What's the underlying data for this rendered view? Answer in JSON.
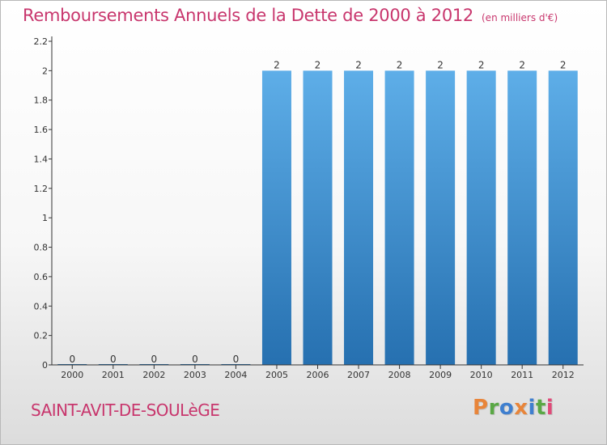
{
  "header": {
    "title": "Remboursements Annuels de la Dette de 2000 à 2012",
    "subtitle": "(en milliers d'€)"
  },
  "footer": {
    "commune": "SAINT-AVIT-DE-SOULèGE",
    "logo_text": "Proxiti",
    "logo_colors": [
      "#e8853a",
      "#5aa845",
      "#3f7fcf",
      "#e8853a",
      "#3f7fcf",
      "#5aa845",
      "#e04a79"
    ]
  },
  "colors": {
    "bar_top": "#5eaee8",
    "bar_bottom": "#2670b0",
    "text_accent": "#c8366d",
    "axis": "#333333"
  },
  "chart_data": {
    "type": "bar",
    "title": "Remboursements Annuels de la Dette de 2000 à 2012",
    "xlabel": "",
    "ylabel": "",
    "categories": [
      "2000",
      "2001",
      "2002",
      "2003",
      "2004",
      "2005",
      "2006",
      "2007",
      "2008",
      "2009",
      "2010",
      "2011",
      "2012"
    ],
    "values": [
      0,
      0,
      0,
      0,
      0,
      2,
      2,
      2,
      2,
      2,
      2,
      2,
      2
    ],
    "data_labels": [
      "0",
      "0",
      "0",
      "0",
      "0",
      "2",
      "2",
      "2",
      "2",
      "2",
      "2",
      "2",
      "2"
    ],
    "ylim": [
      0,
      2.2
    ],
    "yticks": [
      0,
      0.2,
      0.4,
      0.6,
      0.8,
      1,
      1.2,
      1.4,
      1.6,
      1.8,
      2,
      2.2
    ],
    "ytick_labels": [
      "0",
      "0.2",
      "0.4",
      "0.6",
      "0.8",
      "1",
      "1.2",
      "1.4",
      "1.6",
      "1.8",
      "2",
      "2.2"
    ],
    "grid": false
  }
}
